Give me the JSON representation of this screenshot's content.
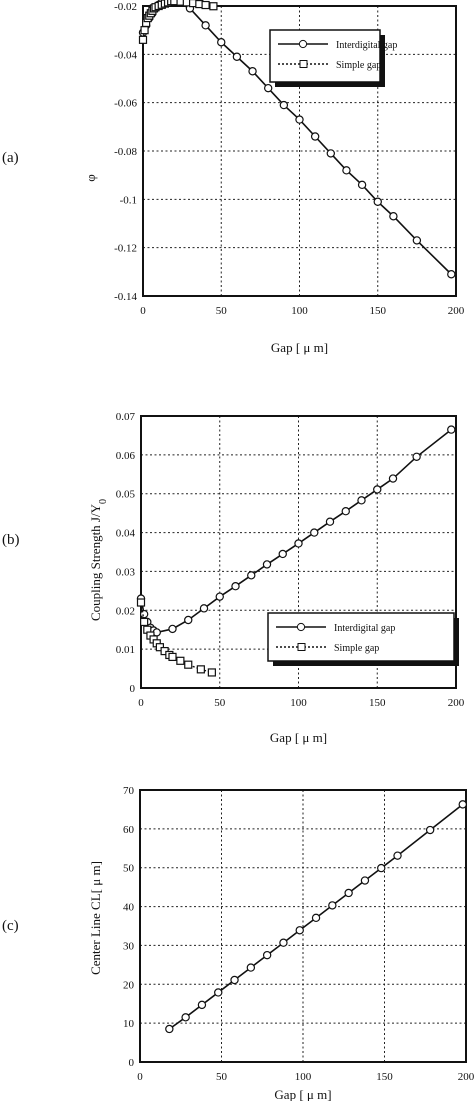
{
  "chart_data": [
    {
      "type": "line",
      "panel_label": "(a)",
      "xlabel": "Gap [ μ m]",
      "ylabel": "φ",
      "xlim": [
        0,
        200
      ],
      "ylim": [
        -0.14,
        -0.02
      ],
      "xticks": [
        "0",
        "50",
        "100",
        "150",
        "200"
      ],
      "yticks": [
        "-0.02",
        "-0.04",
        "-0.06",
        "-0.08",
        "-0.1",
        "-0.12",
        "-0.14"
      ],
      "grid": true,
      "legend_position": "top-right",
      "series": [
        {
          "name": "Interdigital gap",
          "marker": "circle",
          "line": "solid",
          "x": [
            0,
            2,
            4,
            6,
            8,
            10,
            12,
            14,
            16,
            18,
            20,
            30,
            40,
            50,
            60,
            70,
            80,
            90,
            100,
            110,
            120,
            130,
            140,
            150,
            160,
            175,
            197
          ],
          "y": [
            -0.031,
            -0.028,
            -0.025,
            -0.023,
            -0.021,
            -0.0195,
            -0.0185,
            -0.018,
            -0.0178,
            -0.0178,
            -0.018,
            -0.021,
            -0.028,
            -0.035,
            -0.041,
            -0.047,
            -0.054,
            -0.061,
            -0.067,
            -0.074,
            -0.081,
            -0.088,
            -0.094,
            -0.101,
            -0.107,
            -0.117,
            -0.131
          ]
        },
        {
          "name": "Simple gap",
          "marker": "square",
          "line": "dotted",
          "x": [
            0,
            1,
            2,
            3,
            4,
            5,
            6,
            7,
            8,
            10,
            12,
            14,
            16,
            18,
            20,
            24,
            28,
            32,
            36,
            40,
            45
          ],
          "y": [
            -0.034,
            -0.03,
            -0.027,
            -0.025,
            -0.024,
            -0.023,
            -0.022,
            -0.021,
            -0.0205,
            -0.02,
            -0.0195,
            -0.019,
            -0.0185,
            -0.018,
            -0.018,
            -0.0182,
            -0.0185,
            -0.0188,
            -0.0192,
            -0.0196,
            -0.0201
          ]
        }
      ]
    },
    {
      "type": "line",
      "panel_label": "(b)",
      "xlabel": "Gap [ μ m]",
      "ylabel": "Coupling Strength  J/Y",
      "ylabel_sub": "0",
      "xlim": [
        0,
        200
      ],
      "ylim": [
        0,
        0.07
      ],
      "xticks": [
        "0",
        "50",
        "100",
        "150",
        "200"
      ],
      "yticks": [
        "0",
        "0.01",
        "0.02",
        "0.03",
        "0.04",
        "0.05",
        "0.06",
        "0.07"
      ],
      "grid": true,
      "legend_position": "bottom-right",
      "series": [
        {
          "name": "Interdigital gap",
          "marker": "circle",
          "line": "solid",
          "x": [
            0,
            2,
            4,
            6,
            8,
            10,
            20,
            30,
            40,
            50,
            60,
            70,
            80,
            90,
            100,
            110,
            120,
            130,
            140,
            150,
            160,
            175,
            197
          ],
          "y": [
            0.023,
            0.019,
            0.017,
            0.0155,
            0.0148,
            0.0143,
            0.0152,
            0.0175,
            0.0205,
            0.0235,
            0.0262,
            0.029,
            0.0318,
            0.0345,
            0.0372,
            0.04,
            0.0428,
            0.0455,
            0.0483,
            0.0511,
            0.0539,
            0.0595,
            0.0665
          ]
        },
        {
          "name": "Simple gap",
          "marker": "square",
          "line": "dotted",
          "x": [
            0,
            2,
            4,
            6,
            8,
            10,
            12,
            15,
            18,
            20,
            25,
            30,
            38,
            45
          ],
          "y": [
            0.022,
            0.017,
            0.015,
            0.0135,
            0.0125,
            0.0115,
            0.0105,
            0.0095,
            0.0085,
            0.008,
            0.007,
            0.006,
            0.0048,
            0.004
          ]
        }
      ]
    },
    {
      "type": "line",
      "panel_label": "(c)",
      "xlabel": "Gap [ μ m]",
      "ylabel": "Center Line CL[ μ m]",
      "xlim": [
        0,
        200
      ],
      "ylim": [
        0,
        70
      ],
      "xticks": [
        "0",
        "50",
        "100",
        "150",
        "200"
      ],
      "yticks": [
        "0",
        "10",
        "20",
        "30",
        "40",
        "50",
        "60",
        "70"
      ],
      "grid": true,
      "series": [
        {
          "name": "",
          "marker": "circle",
          "line": "solid",
          "x": [
            18,
            28,
            38,
            48,
            58,
            68,
            78,
            88,
            98,
            108,
            118,
            128,
            138,
            148,
            158,
            178,
            198
          ],
          "y": [
            8.5,
            11.5,
            14.7,
            17.9,
            21.1,
            24.3,
            27.5,
            30.7,
            33.9,
            37.1,
            40.3,
            43.5,
            46.7,
            49.9,
            53.1,
            59.7,
            66.3
          ]
        }
      ]
    }
  ]
}
